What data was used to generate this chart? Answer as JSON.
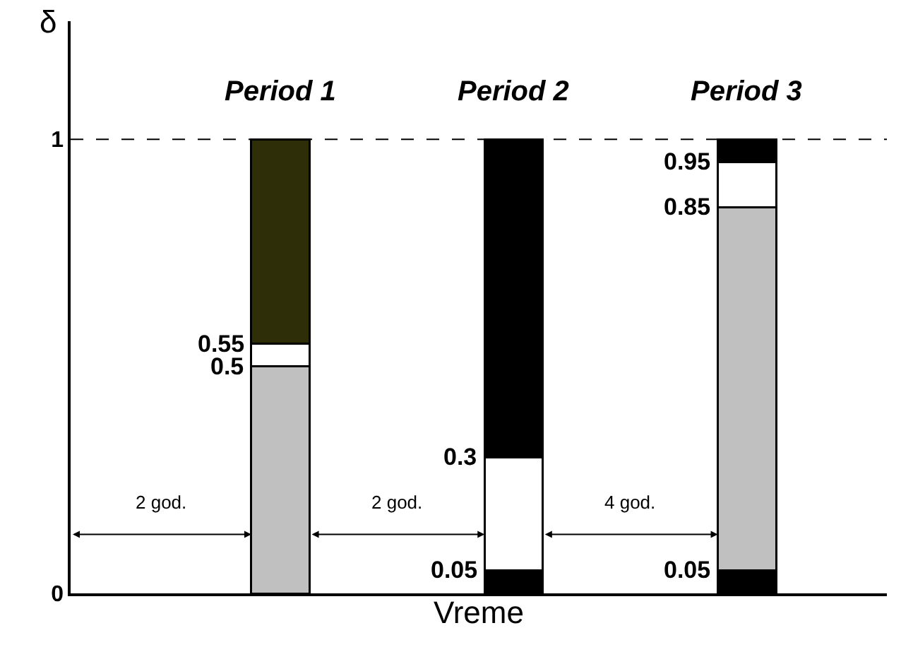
{
  "chart_data": {
    "type": "bar",
    "stacked": true,
    "xlabel": "Vreme",
    "ylabel": "δ",
    "categories": [
      "Period 1",
      "Period 2",
      "Period 3"
    ],
    "ylim": [
      0,
      1.26
    ],
    "yticks": [
      0,
      1
    ],
    "legend": false,
    "series": [
      {
        "values": [
          0.5,
          0.05,
          0.05
        ],
        "colors": [
          "#c0c0c0",
          "#000000",
          "#000000"
        ]
      },
      {
        "values": [
          0.05,
          0.25,
          0.8
        ],
        "colors": [
          "#ffffff",
          "#ffffff",
          "#c0c0c0"
        ]
      },
      {
        "values": [
          0.45,
          0.7,
          0.1
        ],
        "colors": [
          "#2e2e08",
          "#000000",
          "#ffffff"
        ]
      },
      {
        "values": [
          0,
          0,
          0.05
        ],
        "colors": [
          "#000000",
          "#000000",
          "#000000"
        ]
      }
    ],
    "ref_lines": [
      {
        "axis": "y",
        "value": 1,
        "label": null,
        "line_style": "dashed",
        "color": "#000000"
      }
    ],
    "annotations": [
      {
        "text": "0.55",
        "x": "Period 1",
        "y": 0.55
      },
      {
        "text": "0.5",
        "x": "Period 1",
        "y": 0.5
      },
      {
        "text": "0.3",
        "x": "Period 2",
        "y": 0.3
      },
      {
        "text": "0.05",
        "x": "Period 2",
        "y": 0.05
      },
      {
        "text": "0.95",
        "x": "Period 3",
        "y": 0.95
      },
      {
        "text": "0.85",
        "x": "Period 3",
        "y": 0.85
      },
      {
        "text": "0.05",
        "x": "Period 3",
        "y": 0.05
      },
      "2 god.",
      "2 god.",
      "4 god."
    ]
  }
}
